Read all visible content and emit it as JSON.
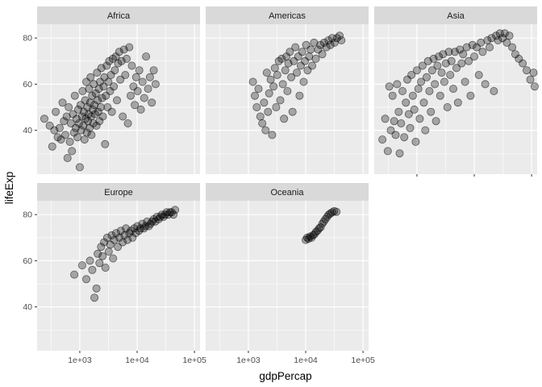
{
  "chart_data": {
    "type": "scatter",
    "facet_by": "continent",
    "xlabel": "gdpPercap",
    "ylabel": "lifeExp",
    "x_scale": "log10",
    "xlim": [
      180,
      125000
    ],
    "ylim": [
      21,
      86
    ],
    "x_ticks": [
      1000,
      10000,
      100000
    ],
    "x_tick_labels": [
      "1e+03",
      "1e+04",
      "1e+05"
    ],
    "y_ticks": [
      40,
      60,
      80
    ],
    "y_tick_labels": [
      "40",
      "60",
      "80"
    ],
    "grid": true,
    "colors": {
      "panel_bg": "#ebebeb",
      "grid_major": "#ffffff",
      "strip_bg": "#d9d9d9",
      "point_fill": "#000000",
      "point_opacity": 0.3
    },
    "facets": [
      {
        "name": "Africa",
        "points": [
          [
            241,
            45
          ],
          [
            299,
            42
          ],
          [
            331,
            33
          ],
          [
            360,
            40
          ],
          [
            380,
            48
          ],
          [
            412,
            37
          ],
          [
            445,
            41
          ],
          [
            470,
            36
          ],
          [
            500,
            52
          ],
          [
            530,
            44
          ],
          [
            560,
            38
          ],
          [
            590,
            46
          ],
          [
            610,
            28
          ],
          [
            640,
            50
          ],
          [
            670,
            35
          ],
          [
            700,
            43
          ],
          [
            730,
            31
          ],
          [
            760,
            47
          ],
          [
            790,
            39
          ],
          [
            820,
            55
          ],
          [
            850,
            41
          ],
          [
            880,
            45
          ],
          [
            910,
            37
          ],
          [
            940,
            49
          ],
          [
            970,
            43
          ],
          [
            1000,
            24
          ],
          [
            1030,
            51
          ],
          [
            1060,
            40
          ],
          [
            1090,
            46
          ],
          [
            1120,
            57
          ],
          [
            1150,
            42
          ],
          [
            1180,
            48
          ],
          [
            1210,
            36
          ],
          [
            1240,
            53
          ],
          [
            1270,
            45
          ],
          [
            1300,
            61
          ],
          [
            1330,
            39
          ],
          [
            1360,
            50
          ],
          [
            1390,
            44
          ],
          [
            1420,
            47
          ],
          [
            1450,
            58
          ],
          [
            1480,
            41
          ],
          [
            1510,
            52
          ],
          [
            1540,
            63
          ],
          [
            1570,
            46
          ],
          [
            1600,
            38
          ],
          [
            1640,
            55
          ],
          [
            1680,
            49
          ],
          [
            1720,
            43
          ],
          [
            1760,
            60
          ],
          [
            1800,
            51
          ],
          [
            1850,
            47
          ],
          [
            1900,
            56
          ],
          [
            1950,
            42
          ],
          [
            2000,
            65
          ],
          [
            2050,
            53
          ],
          [
            2100,
            48
          ],
          [
            2150,
            58
          ],
          [
            2200,
            44
          ],
          [
            2260,
            61
          ],
          [
            2320,
            50
          ],
          [
            2380,
            67
          ],
          [
            2450,
            54
          ],
          [
            2520,
            46
          ],
          [
            2600,
            59
          ],
          [
            2680,
            63
          ],
          [
            2760,
            34
          ],
          [
            2850,
            55
          ],
          [
            2950,
            68
          ],
          [
            3050,
            50
          ],
          [
            3150,
            61
          ],
          [
            3260,
            70
          ],
          [
            3380,
            57
          ],
          [
            3500,
            64
          ],
          [
            3630,
            48
          ],
          [
            3770,
            71
          ],
          [
            3920,
            59
          ],
          [
            4080,
            66
          ],
          [
            4250,
            72
          ],
          [
            4440,
            53
          ],
          [
            4650,
            69
          ],
          [
            4870,
            74
          ],
          [
            5100,
            62
          ],
          [
            5350,
            70
          ],
          [
            5620,
            46
          ],
          [
            5900,
            75
          ],
          [
            6200,
            64
          ],
          [
            6550,
            71
          ],
          [
            6900,
            43
          ],
          [
            7300,
            76
          ],
          [
            7700,
            55
          ],
          [
            8100,
            68
          ],
          [
            8600,
            59
          ],
          [
            9100,
            51
          ],
          [
            9600,
            63
          ],
          [
            10200,
            57
          ],
          [
            10900,
            66
          ],
          [
            11600,
            49
          ],
          [
            12400,
            61
          ],
          [
            13300,
            54
          ],
          [
            14300,
            72
          ],
          [
            15500,
            58
          ],
          [
            16700,
            63
          ],
          [
            18000,
            52
          ],
          [
            19500,
            66
          ],
          [
            21000,
            60
          ]
        ]
      },
      {
        "name": "Americas",
        "points": [
          [
            1200,
            61
          ],
          [
            1300,
            55
          ],
          [
            1400,
            50
          ],
          [
            1500,
            58
          ],
          [
            1620,
            46
          ],
          [
            1750,
            43
          ],
          [
            1880,
            52
          ],
          [
            2000,
            40
          ],
          [
            2100,
            65
          ],
          [
            2200,
            48
          ],
          [
            2300,
            56
          ],
          [
            2450,
            62
          ],
          [
            2600,
            38
          ],
          [
            2750,
            59
          ],
          [
            2900,
            67
          ],
          [
            3050,
            50
          ],
          [
            3200,
            64
          ],
          [
            3400,
            70
          ],
          [
            3600,
            53
          ],
          [
            3800,
            71
          ],
          [
            4000,
            60
          ],
          [
            4200,
            45
          ],
          [
            4400,
            66
          ],
          [
            4600,
            72
          ],
          [
            4800,
            57
          ],
          [
            5000,
            69
          ],
          [
            5300,
            74
          ],
          [
            5600,
            63
          ],
          [
            5900,
            48
          ],
          [
            6200,
            70
          ],
          [
            6600,
            76
          ],
          [
            7000,
            65
          ],
          [
            7400,
            72
          ],
          [
            7800,
            55
          ],
          [
            8200,
            68
          ],
          [
            8700,
            74
          ],
          [
            9200,
            61
          ],
          [
            9700,
            70
          ],
          [
            10200,
            77
          ],
          [
            10800,
            66
          ],
          [
            11500,
            72
          ],
          [
            12200,
            75
          ],
          [
            13000,
            68
          ],
          [
            14000,
            78
          ],
          [
            15000,
            71
          ],
          [
            16500,
            75
          ],
          [
            18000,
            77
          ],
          [
            19500,
            73
          ],
          [
            21000,
            78
          ],
          [
            23000,
            76
          ],
          [
            25000,
            79
          ],
          [
            27000,
            77
          ],
          [
            29000,
            80
          ],
          [
            32000,
            78
          ],
          [
            35000,
            80
          ],
          [
            39000,
            81
          ],
          [
            42000,
            79
          ]
        ]
      },
      {
        "name": "Asia",
        "points": [
          [
            250,
            36
          ],
          [
            280,
            45
          ],
          [
            310,
            31
          ],
          [
            330,
            59
          ],
          [
            350,
            40
          ],
          [
            375,
            55
          ],
          [
            400,
            44
          ],
          [
            425,
            38
          ],
          [
            450,
            60
          ],
          [
            480,
            48
          ],
          [
            500,
            30
          ],
          [
            530,
            43
          ],
          [
            560,
            57
          ],
          [
            600,
            37
          ],
          [
            640,
            52
          ],
          [
            680,
            62
          ],
          [
            720,
            47
          ],
          [
            760,
            41
          ],
          [
            800,
            64
          ],
          [
            850,
            55
          ],
          [
            900,
            49
          ],
          [
            950,
            35
          ],
          [
            1000,
            66
          ],
          [
            1060,
            58
          ],
          [
            1120,
            45
          ],
          [
            1180,
            61
          ],
          [
            1250,
            68
          ],
          [
            1320,
            52
          ],
          [
            1400,
            40
          ],
          [
            1480,
            63
          ],
          [
            1560,
            70
          ],
          [
            1650,
            57
          ],
          [
            1750,
            48
          ],
          [
            1850,
            66
          ],
          [
            1950,
            71
          ],
          [
            2050,
            60
          ],
          [
            2150,
            44
          ],
          [
            2280,
            68
          ],
          [
            2400,
            72
          ],
          [
            2550,
            55
          ],
          [
            2700,
            65
          ],
          [
            2850,
            73
          ],
          [
            3000,
            61
          ],
          [
            3200,
            69
          ],
          [
            3400,
            50
          ],
          [
            3600,
            74
          ],
          [
            3800,
            64
          ],
          [
            4000,
            70
          ],
          [
            4300,
            58
          ],
          [
            4600,
            74
          ],
          [
            4900,
            67
          ],
          [
            5200,
            52
          ],
          [
            5600,
            75
          ],
          [
            6000,
            69
          ],
          [
            6400,
            73
          ],
          [
            6900,
            61
          ],
          [
            7400,
            76
          ],
          [
            8000,
            70
          ],
          [
            8600,
            55
          ],
          [
            9300,
            77
          ],
          [
            10000,
            72
          ],
          [
            11000,
            76
          ],
          [
            12000,
            64
          ],
          [
            13000,
            78
          ],
          [
            14000,
            74
          ],
          [
            15500,
            60
          ],
          [
            17000,
            79
          ],
          [
            18500,
            76
          ],
          [
            20000,
            80
          ],
          [
            22000,
            57
          ],
          [
            24000,
            81
          ],
          [
            26000,
            79
          ],
          [
            28000,
            82
          ],
          [
            31000,
            80
          ],
          [
            34000,
            82
          ],
          [
            37000,
            78
          ],
          [
            41000,
            81
          ],
          [
            46000,
            76
          ],
          [
            52000,
            73
          ],
          [
            60000,
            71
          ],
          [
            70000,
            69
          ],
          [
            82000,
            66
          ],
          [
            95000,
            62
          ],
          [
            108000,
            65
          ],
          [
            113000,
            59
          ]
        ]
      },
      {
        "name": "Europe",
        "points": [
          [
            800,
            54
          ],
          [
            1100,
            58
          ],
          [
            1300,
            52
          ],
          [
            1500,
            60
          ],
          [
            1650,
            56
          ],
          [
            1800,
            44
          ],
          [
            1950,
            48
          ],
          [
            2050,
            63
          ],
          [
            2200,
            59
          ],
          [
            2350,
            66
          ],
          [
            2500,
            62
          ],
          [
            2650,
            68
          ],
          [
            2800,
            57
          ],
          [
            3000,
            70
          ],
          [
            3200,
            64
          ],
          [
            3400,
            67
          ],
          [
            3600,
            71
          ],
          [
            3800,
            61
          ],
          [
            4000,
            69
          ],
          [
            4300,
            72
          ],
          [
            4600,
            66
          ],
          [
            4900,
            70
          ],
          [
            5200,
            73
          ],
          [
            5600,
            68
          ],
          [
            6000,
            71
          ],
          [
            6400,
            74
          ],
          [
            6800,
            69
          ],
          [
            7300,
            72
          ],
          [
            7800,
            73
          ],
          [
            8300,
            70
          ],
          [
            8900,
            74
          ],
          [
            9500,
            72
          ],
          [
            10100,
            75
          ],
          [
            10800,
            73
          ],
          [
            11500,
            74
          ],
          [
            12300,
            76
          ],
          [
            13100,
            74
          ],
          [
            14000,
            75
          ],
          [
            15000,
            77
          ],
          [
            16000,
            75
          ],
          [
            17100,
            76
          ],
          [
            18300,
            77
          ],
          [
            19500,
            78
          ],
          [
            20800,
            77
          ],
          [
            22200,
            79
          ],
          [
            23700,
            78
          ],
          [
            25300,
            79
          ],
          [
            27000,
            80
          ],
          [
            28800,
            79
          ],
          [
            30700,
            80
          ],
          [
            32800,
            81
          ],
          [
            35000,
            80
          ],
          [
            37400,
            81
          ],
          [
            40000,
            81
          ],
          [
            43000,
            80
          ],
          [
            46000,
            82
          ]
        ]
      },
      {
        "name": "Oceania",
        "points": [
          [
            10000,
            69
          ],
          [
            10600,
            70
          ],
          [
            11200,
            69.5
          ],
          [
            11900,
            70.5
          ],
          [
            12600,
            70
          ],
          [
            13400,
            71
          ],
          [
            14200,
            71.5
          ],
          [
            15100,
            72.5
          ],
          [
            16100,
            73
          ],
          [
            17100,
            74
          ],
          [
            18200,
            74.5
          ],
          [
            19400,
            76
          ],
          [
            20700,
            77
          ],
          [
            22100,
            78
          ],
          [
            23600,
            79
          ],
          [
            25200,
            80
          ],
          [
            27000,
            80.5
          ],
          [
            29000,
            81
          ],
          [
            31500,
            81.5
          ],
          [
            34400,
            81.2
          ]
        ]
      }
    ]
  }
}
